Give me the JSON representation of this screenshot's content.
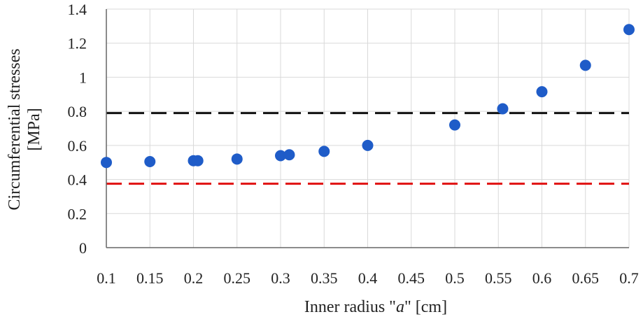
{
  "chart_data": {
    "type": "scatter",
    "xlabel_prefix": "Inner radius \"",
    "xlabel_var": "a",
    "xlabel_suffix": "\" [cm]",
    "ylabel_line1": "Circumferential  stresses",
    "ylabel_line2": "[MPa]",
    "xlim": [
      0.1,
      0.7
    ],
    "ylim": [
      0,
      1.4
    ],
    "x_ticks": [
      "0.1",
      "0.15",
      "0.2",
      "0.25",
      "0.3",
      "0.35",
      "0.4",
      "0.45",
      "0.5",
      "0.55",
      "0.6",
      "0.65",
      "0.7"
    ],
    "y_ticks": [
      "0",
      "0.2",
      "0.4",
      "0.6",
      "0.8",
      "1",
      "1.2",
      "1.4"
    ],
    "grid": true,
    "series": [
      {
        "color": "#1f5cc8",
        "points": [
          {
            "x": 0.1,
            "y": 0.5
          },
          {
            "x": 0.15,
            "y": 0.505
          },
          {
            "x": 0.2,
            "y": 0.51
          },
          {
            "x": 0.205,
            "y": 0.51
          },
          {
            "x": 0.25,
            "y": 0.52
          },
          {
            "x": 0.3,
            "y": 0.54
          },
          {
            "x": 0.31,
            "y": 0.545
          },
          {
            "x": 0.35,
            "y": 0.565
          },
          {
            "x": 0.4,
            "y": 0.6
          },
          {
            "x": 0.5,
            "y": 0.72
          },
          {
            "x": 0.555,
            "y": 0.815
          },
          {
            "x": 0.6,
            "y": 0.915
          },
          {
            "x": 0.65,
            "y": 1.07
          },
          {
            "x": 0.7,
            "y": 1.28
          }
        ]
      }
    ],
    "reference_lines": [
      {
        "y": 0.79,
        "color": "#111111",
        "style": "dashed"
      },
      {
        "y": 0.375,
        "color": "#e01010",
        "style": "dashed"
      }
    ]
  }
}
